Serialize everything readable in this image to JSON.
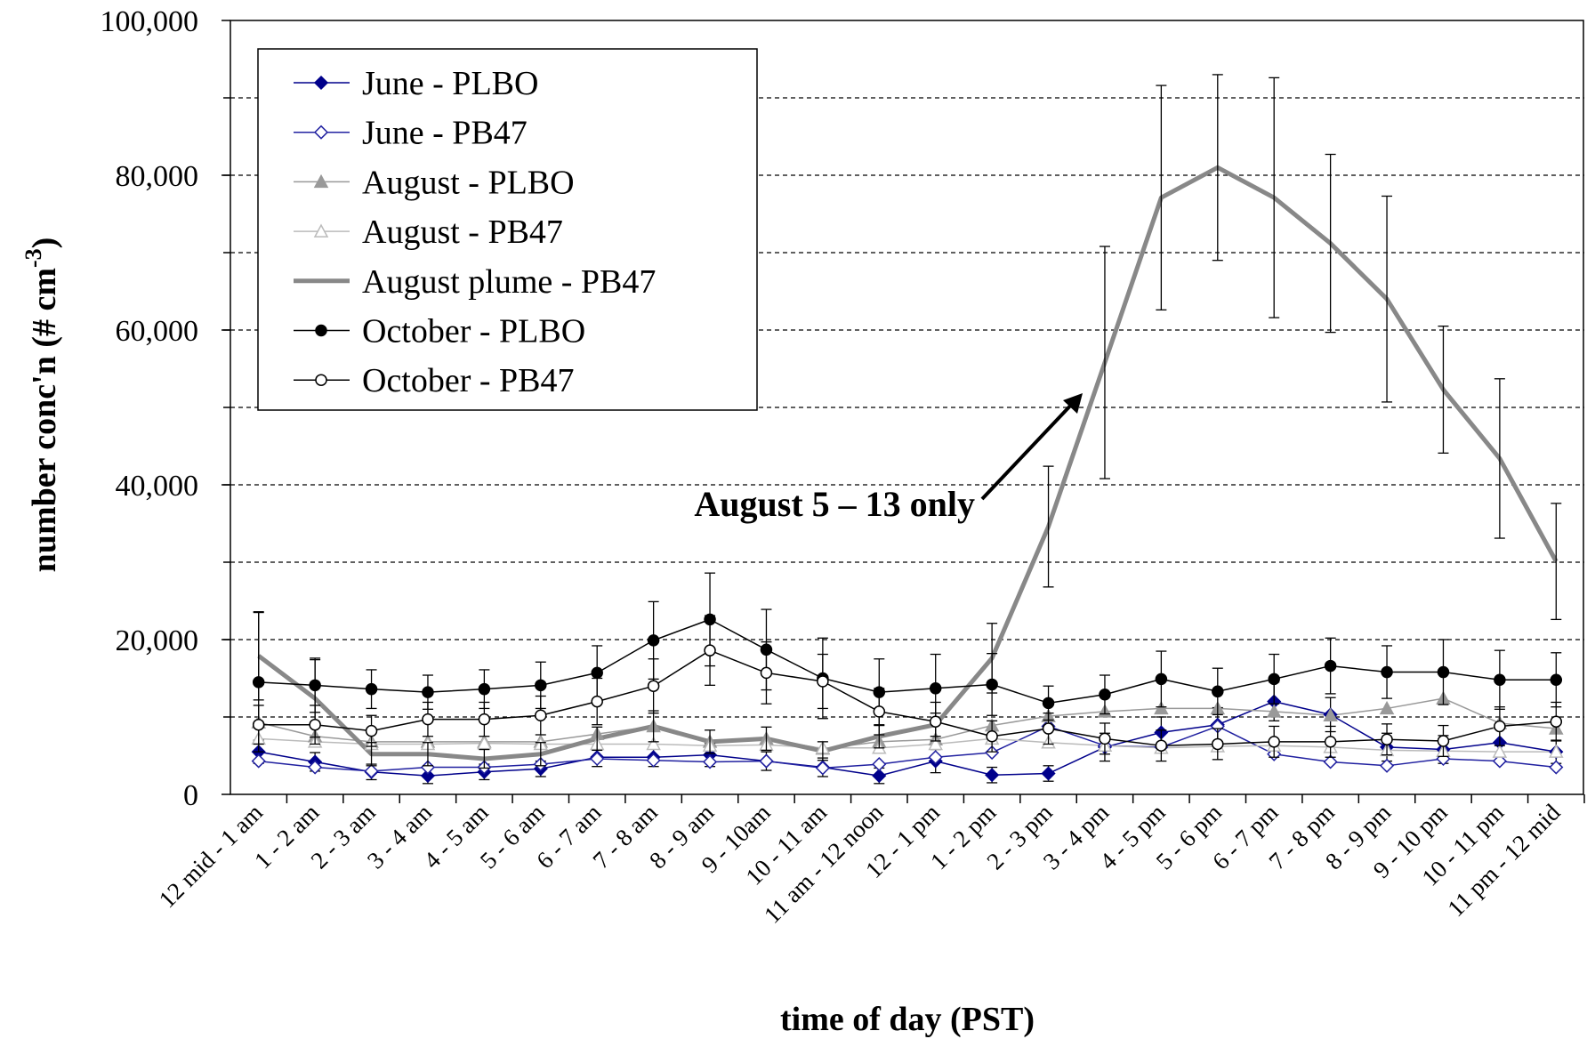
{
  "chart_data": {
    "type": "line",
    "ylabel": [
      "number conc'n (# cm",
      "-3",
      ")"
    ],
    "xlabel": "time of day (PST)",
    "annotation": "August 5 – 13 only",
    "categories": [
      "12 mid - 1 am",
      "1 - 2 am",
      "2 - 3 am",
      "3 - 4 am",
      "4 - 5 am",
      "5 - 6 am",
      "6 - 7 am",
      "7 - 8 am",
      "8 - 9 am",
      "9 - 10am",
      "10 - 11 am",
      "11 am - 12 noon",
      "12 - 1 pm",
      "1 - 2 pm",
      "2 - 3 pm",
      "3 - 4 pm",
      "4 - 5 pm",
      "5 - 6 pm",
      "6 - 7 pm",
      "7 - 8 pm",
      "8 - 9 pm",
      "9 - 10 pm",
      "10 - 11 pm",
      "11 pm - 12 mid"
    ],
    "ylim": [
      0,
      100000
    ],
    "yticks": [
      {
        "value": 0,
        "label": "0"
      },
      {
        "value": 20000,
        "label": "20,000"
      },
      {
        "value": 40000,
        "label": "40,000"
      },
      {
        "value": 60000,
        "label": "60,000"
      },
      {
        "value": 80000,
        "label": "80,000"
      },
      {
        "value": 100000,
        "label": "100,000"
      }
    ],
    "ygrid": [
      10000,
      20000,
      30000,
      40000,
      50000,
      60000,
      70000,
      80000,
      90000
    ],
    "grid": true,
    "legend": "upper left",
    "series": [
      {
        "name": "June - PLBO",
        "color": "#00008b",
        "marker": "diamond",
        "filled": true,
        "width": 1.5,
        "values": [
          5500,
          4200,
          2900,
          2400,
          2900,
          3300,
          4800,
          4800,
          5100,
          4300,
          3500,
          2400,
          4300,
          2500,
          2700,
          6100,
          8000,
          9000,
          12000,
          10300,
          6100,
          5800,
          6700,
          5500
        ],
        "errors": [
          1500,
          1200,
          1000,
          1000,
          1000,
          1000,
          1200,
          1200,
          1500,
          1200,
          1200,
          1000,
          1500,
          1000,
          1000,
          1800,
          2000,
          2200,
          2500,
          2200,
          1800,
          1800,
          1800,
          1500
        ]
      },
      {
        "name": "June - PB47",
        "color": "#2020a0",
        "marker": "diamond",
        "filled": false,
        "width": 1.5,
        "values": [
          4300,
          3500,
          3000,
          3500,
          3500,
          3900,
          4600,
          4400,
          4200,
          4300,
          3400,
          3900,
          4800,
          5400,
          8800,
          6300,
          6100,
          8800,
          5200,
          4200,
          3700,
          4600,
          4300,
          3500
        ]
      },
      {
        "name": "August - PLBO",
        "color": "#999999",
        "marker": "triangle",
        "filled": true,
        "width": 1.5,
        "values": [
          9300,
          7500,
          6800,
          6800,
          6800,
          6800,
          7800,
          8800,
          6800,
          7200,
          5900,
          6800,
          7100,
          8900,
          10100,
          10700,
          11100,
          11100,
          10700,
          10200,
          11100,
          12400,
          9200,
          8500
        ]
      },
      {
        "name": "August - PB47",
        "color": "#bbbbbb",
        "marker": "triangle",
        "filled": false,
        "width": 1.5,
        "values": [
          7200,
          6800,
          6500,
          6500,
          6600,
          6500,
          6500,
          6500,
          6300,
          6400,
          6000,
          6000,
          6500,
          7200,
          6700,
          6300,
          6000,
          6200,
          6300,
          6100,
          5700,
          5600,
          5500,
          5500
        ]
      },
      {
        "name": "August plume - PB47",
        "color": "#888888",
        "marker": "none",
        "filled": false,
        "width": 5,
        "values": [
          17900,
          12400,
          5200,
          5200,
          4600,
          5200,
          7200,
          8800,
          6800,
          7200,
          5600,
          7500,
          9000,
          17600,
          34600,
          55800,
          77100,
          81000,
          77100,
          71200,
          64000,
          52300,
          43400,
          30100
        ],
        "errors": [
          5700,
          5000,
          1500,
          1500,
          1200,
          1500,
          1500,
          2000,
          1500,
          1500,
          1200,
          1500,
          1500,
          4500,
          7800,
          15000,
          14500,
          12000,
          15500,
          11500,
          13300,
          8200,
          10300,
          7500
        ]
      },
      {
        "name": "October - PLBO",
        "color": "#000000",
        "marker": "circle",
        "filled": true,
        "width": 1.5,
        "values": [
          14500,
          14100,
          13600,
          13200,
          13600,
          14100,
          15700,
          19900,
          22600,
          18700,
          15000,
          13200,
          13700,
          14200,
          11800,
          12900,
          14900,
          13300,
          14900,
          16600,
          15800,
          15800,
          14800,
          14800
        ],
        "errors": [
          9000,
          3500,
          2500,
          2200,
          2500,
          3000,
          3500,
          5000,
          6000,
          5200,
          5200,
          4300,
          4400,
          4000,
          2200,
          2500,
          3600,
          3000,
          3200,
          3600,
          3400,
          4200,
          3800,
          3500
        ]
      },
      {
        "name": "October - PB47",
        "color": "#000000",
        "marker": "circle",
        "filled": false,
        "width": 1.5,
        "values": [
          9000,
          9000,
          8200,
          9700,
          9700,
          10200,
          12000,
          14000,
          18600,
          15700,
          14600,
          10700,
          9400,
          7500,
          8500,
          7200,
          6300,
          6500,
          6800,
          6800,
          7100,
          6900,
          8800,
          9400
        ],
        "errors": [
          2500,
          2500,
          2000,
          2200,
          2200,
          2500,
          3000,
          3500,
          4500,
          4000,
          3500,
          3000,
          2500,
          2000,
          2000,
          2000,
          2000,
          2000,
          2000,
          2000,
          2000,
          2000,
          2500,
          2500
        ]
      }
    ]
  }
}
